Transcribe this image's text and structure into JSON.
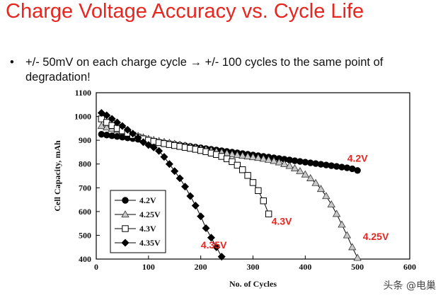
{
  "slide": {
    "title": "Charge Voltage Accuracy vs. Cycle Life",
    "bullet_symbol": "•",
    "bullet_line1": "+/- 50mV on each charge cycle → +/- 100 cycles to the same point of",
    "bullet_line2": "degradation!"
  },
  "watermark": "头条 @电巢",
  "chart_data": {
    "type": "line",
    "xlabel": "No. of Cycles",
    "ylabel": "Cell Capacity, mAh",
    "xlim": [
      0,
      600
    ],
    "ylim": [
      400,
      1100
    ],
    "x_ticks": [
      0,
      100,
      200,
      300,
      400,
      500,
      600
    ],
    "y_ticks": [
      400,
      500,
      600,
      700,
      800,
      900,
      1000,
      1100
    ],
    "grid": false,
    "legend_position": "bottom-left",
    "series": [
      {
        "name": "4.2V",
        "marker": "circle-filled",
        "x": [
          10,
          20,
          30,
          40,
          50,
          60,
          70,
          80,
          90,
          100,
          110,
          120,
          130,
          140,
          150,
          160,
          170,
          180,
          190,
          200,
          210,
          220,
          230,
          240,
          250,
          260,
          270,
          280,
          290,
          300,
          310,
          320,
          330,
          340,
          350,
          360,
          370,
          380,
          390,
          400,
          410,
          420,
          430,
          440,
          450,
          460,
          470,
          480,
          490,
          500
        ],
        "y": [
          925,
          922,
          919,
          916,
          913,
          910,
          907,
          904,
          901,
          898,
          895,
          892,
          889,
          886,
          883,
          880,
          877,
          874,
          871,
          868,
          865,
          862,
          859,
          856,
          853,
          850,
          847,
          844,
          841,
          838,
          835,
          832,
          829,
          826,
          823,
          820,
          817,
          814,
          811,
          808,
          805,
          802,
          799,
          796,
          793,
          790,
          787,
          784,
          780,
          773
        ]
      },
      {
        "name": "4.25V",
        "marker": "triangle-open",
        "x": [
          10,
          20,
          30,
          40,
          50,
          60,
          70,
          80,
          90,
          100,
          110,
          120,
          130,
          140,
          150,
          160,
          170,
          180,
          190,
          200,
          210,
          220,
          230,
          240,
          250,
          260,
          270,
          280,
          290,
          300,
          310,
          320,
          330,
          340,
          350,
          360,
          370,
          380,
          390,
          400,
          410,
          420,
          430,
          440,
          450,
          460,
          470,
          480,
          490,
          500
        ],
        "y": [
          960,
          954,
          948,
          942,
          936,
          930,
          924,
          918,
          912,
          906,
          901,
          897,
          893,
          889,
          885,
          881,
          877,
          873,
          869,
          865,
          861,
          857,
          853,
          849,
          845,
          841,
          838,
          835,
          832,
          829,
          826,
          822,
          818,
          813,
          807,
          800,
          792,
          782,
          770,
          756,
          740,
          720,
          695,
          665,
          630,
          590,
          545,
          500,
          450,
          405
        ]
      },
      {
        "name": "4.3V",
        "marker": "square-open",
        "x": [
          10,
          20,
          30,
          40,
          50,
          60,
          70,
          80,
          90,
          100,
          110,
          120,
          130,
          140,
          150,
          160,
          170,
          180,
          190,
          200,
          210,
          220,
          230,
          240,
          250,
          260,
          270,
          280,
          290,
          300,
          310,
          320,
          330
        ],
        "y": [
          990,
          975,
          962,
          950,
          940,
          930,
          921,
          913,
          906,
          900,
          895,
          890,
          886,
          882,
          878,
          874,
          870,
          866,
          862,
          857,
          852,
          846,
          840,
          832,
          822,
          810,
          795,
          776,
          752,
          722,
          688,
          645,
          590
        ]
      },
      {
        "name": "4.35V",
        "marker": "diamond-filled",
        "x": [
          10,
          20,
          30,
          40,
          50,
          60,
          70,
          80,
          90,
          100,
          110,
          120,
          130,
          140,
          150,
          160,
          170,
          180,
          190,
          200,
          210,
          220,
          230,
          240
        ],
        "y": [
          1015,
          1005,
          990,
          975,
          960,
          944,
          928,
          910,
          892,
          880,
          870,
          855,
          830,
          800,
          770,
          740,
          705,
          665,
          625,
          580,
          530,
          490,
          450,
          410
        ]
      }
    ],
    "annotations": [
      {
        "text": "4.2V",
        "x": 500,
        "y": 810
      },
      {
        "text": "4.3V",
        "x": 355,
        "y": 545
      },
      {
        "text": "4.25V",
        "x": 535,
        "y": 480
      },
      {
        "text": "4.35V",
        "x": 225,
        "y": 445
      }
    ],
    "colors": {
      "series": "#000000",
      "annotation": "#e8251f",
      "title": "#e8251f"
    }
  }
}
